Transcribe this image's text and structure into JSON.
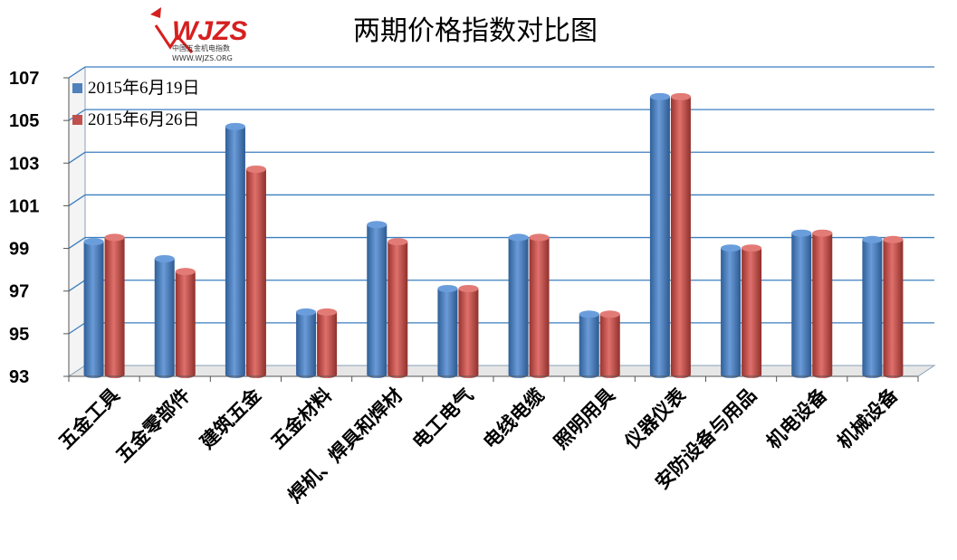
{
  "logo": {
    "mark": "WJZS",
    "subtitle": "中国五金机电指数",
    "url": "WWW.WJZS.ORG"
  },
  "chart_data": {
    "type": "bar",
    "title": "两期价格指数对比图",
    "xlabel": "",
    "ylabel": "",
    "ylim": [
      93,
      107
    ],
    "yticks": [
      93,
      95,
      97,
      99,
      101,
      103,
      105,
      107
    ],
    "grid": true,
    "legend_position": "top-left",
    "categories": [
      "五金工具",
      "五金零部件",
      "建筑五金",
      "五金材料",
      "焊机、焊具和焊材",
      "电工电气",
      "电线电缆",
      "照明用具",
      "仪器仪表",
      "安防设备与用品",
      "机电设备",
      "机械设备"
    ],
    "series": [
      {
        "name": "2015年6月19日",
        "color": "#4f81bd",
        "values": [
          99.4,
          98.6,
          104.8,
          96.1,
          100.2,
          97.2,
          99.6,
          96.0,
          106.2,
          99.1,
          99.8,
          99.5
        ]
      },
      {
        "name": "2015年6月26日",
        "color": "#c0504d",
        "values": [
          99.6,
          98.0,
          102.8,
          96.1,
          99.4,
          97.2,
          99.6,
          96.0,
          106.2,
          99.1,
          99.8,
          99.5
        ]
      }
    ]
  }
}
